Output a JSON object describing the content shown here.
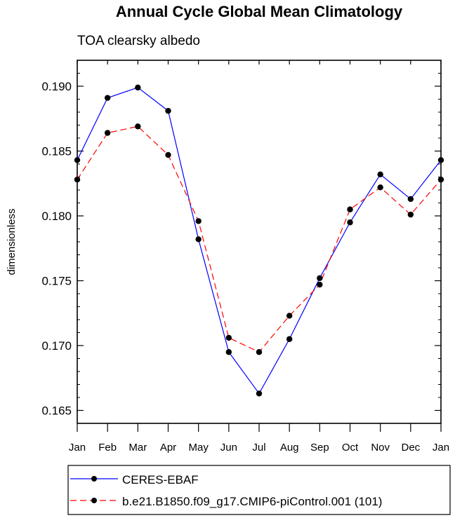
{
  "chart_data": {
    "type": "line",
    "title": "Annual Cycle Global Mean Climatology",
    "subtitle": "TOA clearsky albedo",
    "xlabel": "",
    "ylabel": "dimensionless",
    "categories": [
      "Jan",
      "Feb",
      "Mar",
      "Apr",
      "May",
      "Jun",
      "Jul",
      "Aug",
      "Sep",
      "Oct",
      "Nov",
      "Dec",
      "Jan"
    ],
    "ylim": [
      0.164,
      0.192
    ],
    "yticks": [
      0.165,
      0.17,
      0.175,
      0.18,
      0.185,
      0.19
    ],
    "ytick_labels": [
      "0.165",
      "0.170",
      "0.175",
      "0.180",
      "0.185",
      "0.190"
    ],
    "series": [
      {
        "name": "CERES-EBAF",
        "color": "#0000ff",
        "dash": "solid",
        "values": [
          0.1843,
          0.1891,
          0.1899,
          0.1881,
          0.1782,
          0.1695,
          0.1663,
          0.1705,
          0.1752,
          0.1795,
          0.1832,
          0.1813,
          0.1843
        ]
      },
      {
        "name": "b.e21.B1850.f09_g17.CMIP6-piControl.001 (101)",
        "color": "#ff0000",
        "dash": "dashed",
        "values": [
          0.1828,
          0.1864,
          0.1869,
          0.1847,
          0.1796,
          0.1706,
          0.1695,
          0.1723,
          0.1747,
          0.1805,
          0.1822,
          0.1801,
          0.1828
        ]
      }
    ],
    "legend_position": "bottom",
    "grid": false
  }
}
